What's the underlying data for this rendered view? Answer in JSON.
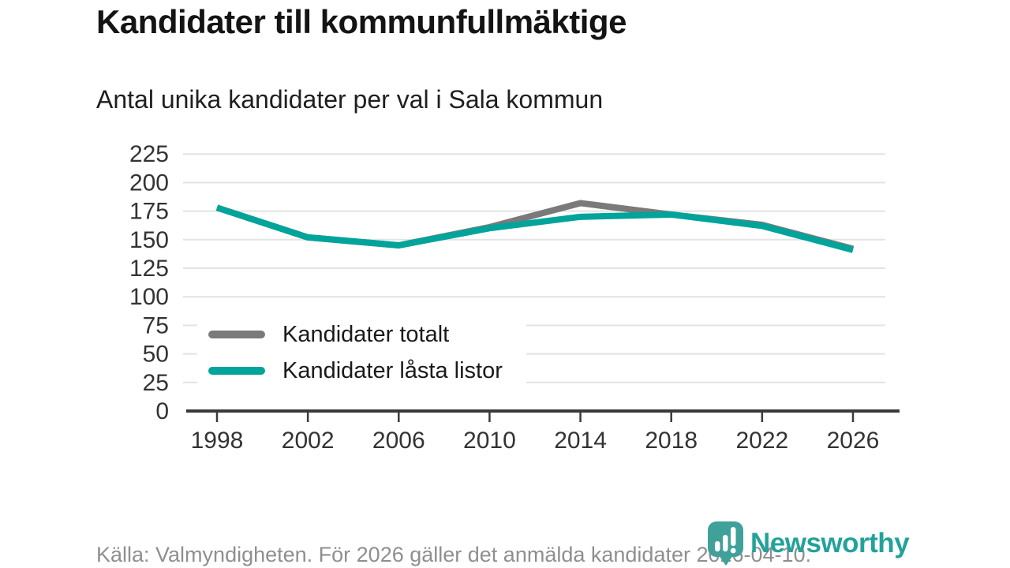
{
  "header": {
    "title": "Kandidater till kommunfullmäktige",
    "subtitle": "Antal unika kandidater per val i Sala kommun"
  },
  "footer": {
    "source_text": "Källa: Valmyndigheten. För 2026 gäller det anmälda kandidater 2026-04-10."
  },
  "logo": {
    "brand": "Newsworthy"
  },
  "colors": {
    "teal": "#00a49a",
    "gray": "#7a7a7a",
    "grid": "#e3e3e3",
    "axis": "#3a3a3a",
    "tick_text": "#333333",
    "footer_text": "#8f8f8f",
    "logo_teal": "#40a09a"
  },
  "chart_data": {
    "type": "line",
    "title": "Kandidater till kommunfullmäktige",
    "subtitle": "Antal unika kandidater per val i Sala kommun",
    "x": [
      1998,
      2002,
      2006,
      2010,
      2014,
      2018,
      2022,
      2026
    ],
    "series": [
      {
        "name": "Kandidater totalt",
        "color": "#7a7a7a",
        "values": [
          178,
          152,
          145,
          161,
          182,
          172,
          163,
          142
        ]
      },
      {
        "name": "Kandidater låsta listor",
        "color": "#00a49a",
        "values": [
          178,
          152,
          145,
          160,
          170,
          172,
          162,
          141
        ]
      }
    ],
    "xlabel": "",
    "ylabel": "",
    "ylim": [
      0,
      225
    ],
    "ytick_step": 25,
    "grid": true,
    "legend_position": "inside-bottom-left"
  }
}
